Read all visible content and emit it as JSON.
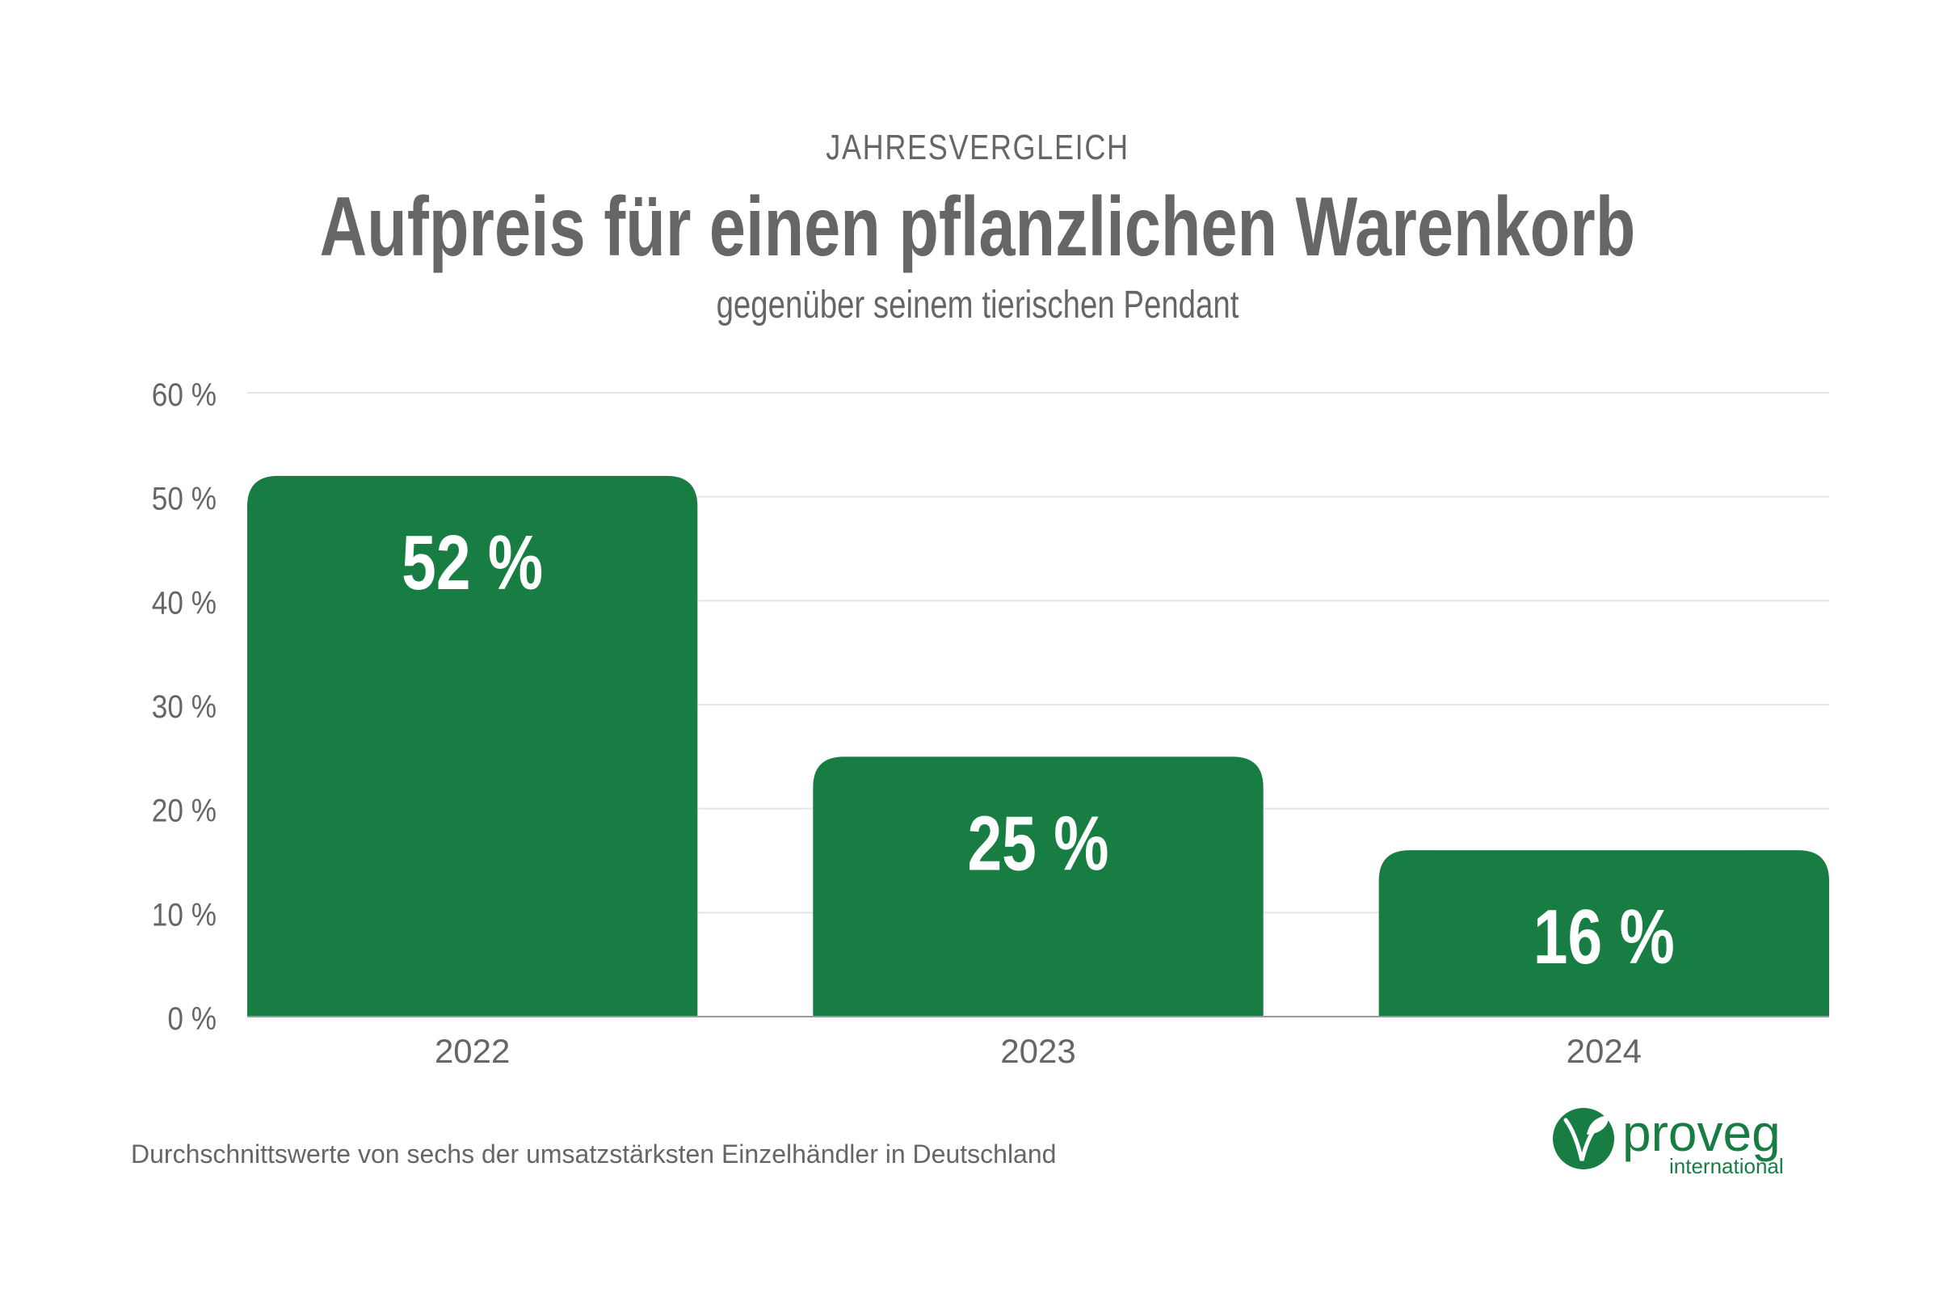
{
  "header": {
    "kicker": "JAHRESVERGLEICH",
    "title": "Aufpreis für einen pflanzlichen Warenkorb",
    "subtitle": "gegenüber seinem tierischen Pendant"
  },
  "footer": {
    "source": "Durchschnittswerte von sechs der umsatzstärksten Einzelhändler in Deutschland",
    "logo": {
      "name": "proveg",
      "tagline": "international"
    }
  },
  "colors": {
    "bar": "#177D42",
    "text": "#666666",
    "grid": "#E5E5E5",
    "label": "#FFFFFF"
  },
  "chart_data": {
    "type": "bar",
    "title": "Aufpreis für einen pflanzlichen Warenkorb",
    "subtitle": "gegenüber seinem tierischen Pendant",
    "categories": [
      "2022",
      "2023",
      "2024"
    ],
    "values": [
      52,
      25,
      16
    ],
    "data_labels": [
      "52 %",
      "25 %",
      "16 %"
    ],
    "xlabel": "",
    "ylabel": "",
    "ylim": [
      0,
      60
    ],
    "yticks": [
      0,
      10,
      20,
      30,
      40,
      50,
      60
    ],
    "ytick_labels": [
      "0 %",
      "10 %",
      "20 %",
      "30 %",
      "40 %",
      "50 %",
      "60 %"
    ],
    "grid": true,
    "legend": "none"
  }
}
